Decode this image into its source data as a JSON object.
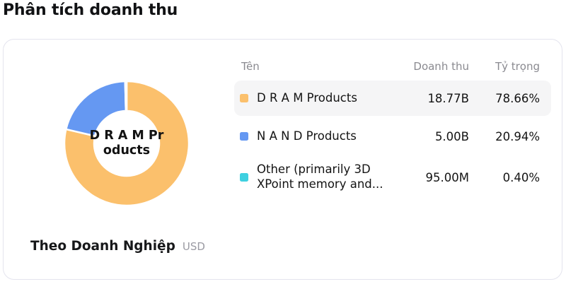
{
  "page": {
    "title": "Phân tích doanh thu"
  },
  "footer": {
    "label": "Theo Doanh Nghiệp",
    "currency": "USD"
  },
  "table": {
    "headers": {
      "name": "Tên",
      "revenue": "Doanh thu",
      "share": "Tỷ trọng"
    },
    "rows": [
      {
        "name": "D R A M Products",
        "revenue": "18.77B",
        "share": "78.66%",
        "highlighted": true
      },
      {
        "name": "N A N D Products",
        "revenue": "5.00B",
        "share": "20.94%",
        "highlighted": false
      },
      {
        "name_line1": "Other (primarily 3D",
        "name_line2": "XPoint memory and...",
        "revenue": "95.00M",
        "share": "0.40%",
        "highlighted": false
      }
    ]
  },
  "colors": {
    "card_border": "#E4E4EE",
    "row_highlight": "#F5F5F6",
    "header_text": "#8A8A90",
    "segment_border": "#FFFFFF"
  },
  "chart_data": {
    "type": "pie",
    "donut": true,
    "title": "Phân tích doanh thu",
    "unit": "USD",
    "legend_position": "right-table",
    "center_label_lines": [
      "D R A M Pr",
      "oducts"
    ],
    "series": [
      {
        "name": "D R A M Products",
        "value": 18770000000,
        "value_label": "18.77B",
        "percent": 78.66,
        "color": "#FBC06C"
      },
      {
        "name": "N A N D Products",
        "value": 5000000000,
        "value_label": "5.00B",
        "percent": 20.94,
        "color": "#6598F2"
      },
      {
        "name": "Other (primarily 3D XPoint memory and...",
        "value": 95000000,
        "value_label": "95.00M",
        "percent": 0.4,
        "color": "#3FD0E0"
      }
    ]
  }
}
